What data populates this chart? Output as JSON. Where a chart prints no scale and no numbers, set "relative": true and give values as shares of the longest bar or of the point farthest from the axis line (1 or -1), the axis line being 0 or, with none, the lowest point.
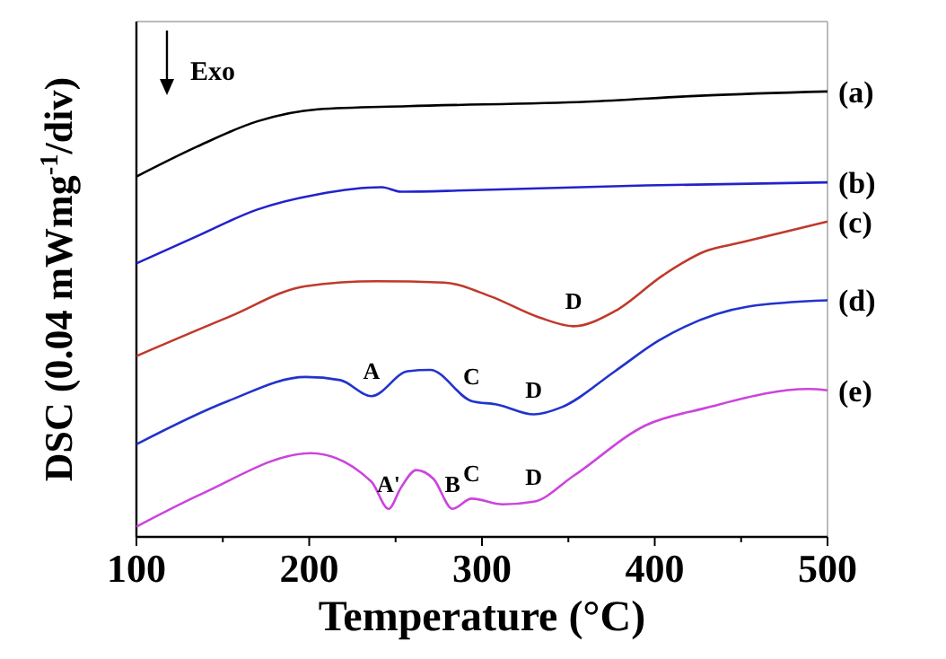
{
  "chart_data": {
    "type": "line",
    "relative": true,
    "xlabel": "Temperature (°C)",
    "ylabel": "DSC (0.04 mWmg$^{-1}$/div)",
    "xlim": [
      100,
      500
    ],
    "xticks": [
      100,
      {
        "value": 150,
        "label": null
      },
      200,
      {
        "value": 250,
        "label": null
      },
      300,
      {
        "value": 350,
        "label": null
      },
      400,
      {
        "value": 450,
        "label": null
      },
      500
    ],
    "annotations": [
      "Exo",
      {
        "text": "D",
        "x": 353,
        "y": 0.473
      },
      {
        "text": "A",
        "x": 236,
        "y": 0.316
      },
      {
        "text": "C",
        "x": 294,
        "y": 0.305
      },
      {
        "text": "D",
        "x": 330,
        "y": 0.275
      },
      {
        "text": "A'",
        "x": 246,
        "y": 0.063
      },
      {
        "text": "B",
        "x": 283,
        "y": 0.063
      },
      {
        "text": "C",
        "x": 294,
        "y": 0.086
      },
      {
        "text": "D",
        "x": 330,
        "y": 0.079
      }
    ],
    "series": [
      {
        "name": "(a)",
        "color": "#000000",
        "x": [
          100,
          135,
          170,
          205,
          257,
          361,
          429,
          500
        ],
        "values": [
          0.809,
          0.876,
          0.933,
          0.96,
          0.967,
          0.977,
          0.991,
          1.0
        ]
      },
      {
        "name": "(b)",
        "color": "#2222cc",
        "x": [
          100,
          135,
          170,
          205,
          242,
          253,
          291,
          395,
          500
        ],
        "values": [
          0.614,
          0.675,
          0.735,
          0.769,
          0.785,
          0.775,
          0.778,
          0.789,
          0.796
        ]
      },
      {
        "name": "(c)",
        "color": "#c0392b",
        "x": [
          100,
          153,
          198,
          239,
          278,
          305,
          333,
          353,
          377,
          405,
          429,
          450,
          500
        ],
        "values": [
          0.406,
          0.493,
          0.563,
          0.574,
          0.571,
          0.54,
          0.493,
          0.473,
          0.507,
          0.588,
          0.641,
          0.661,
          0.708
        ]
      },
      {
        "name": "(d)",
        "color": "#2233cc",
        "x": [
          100,
          153,
          198,
          218,
          236,
          257,
          270,
          294,
          309,
          330,
          346,
          377,
          402,
          454,
          500
        ],
        "values": [
          0.208,
          0.305,
          0.359,
          0.352,
          0.316,
          0.372,
          0.375,
          0.305,
          0.297,
          0.275,
          0.291,
          0.372,
          0.44,
          0.517,
          0.531
        ]
      },
      {
        "name": "(e)",
        "color": "#cc44dd",
        "x": [
          100,
          138,
          201,
          236,
          246,
          253,
          262,
          272,
          283,
          294,
          312,
          330,
          353,
          395,
          429,
          489,
          500
        ],
        "values": [
          0.023,
          0.097,
          0.188,
          0.124,
          0.063,
          0.11,
          0.15,
          0.13,
          0.063,
          0.086,
          0.073,
          0.079,
          0.137,
          0.251,
          0.289,
          0.332,
          0.329
        ]
      }
    ]
  }
}
